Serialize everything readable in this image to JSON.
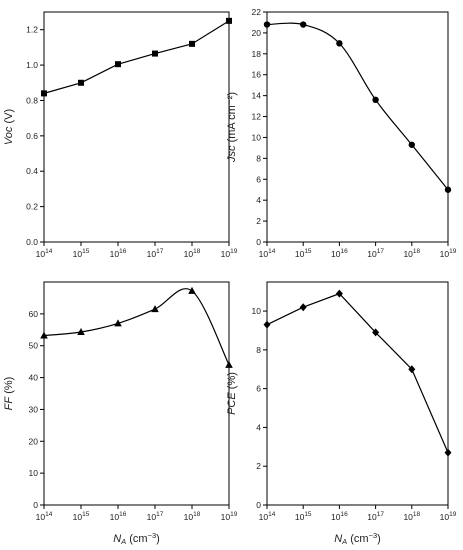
{
  "chart_data": [
    {
      "type": "line",
      "id": "voc",
      "ylabel_main": "Voc",
      "ylabel_unit": " (V)",
      "x_exponents": [
        14,
        15,
        16,
        17,
        18,
        19
      ],
      "x_base": "10",
      "y_ticks": [
        "0.0",
        "0.2",
        "0.4",
        "0.6",
        "0.8",
        "1.0",
        "1.2"
      ],
      "ylim": [
        0,
        1.3
      ],
      "marker": "square",
      "series": [
        {
          "x": [
            100000000000000.0,
            1000000000000000.0,
            1e+16,
            1e+17,
            1e+18,
            1e+19
          ],
          "y": [
            0.84,
            0.9,
            1.005,
            1.065,
            1.12,
            1.25
          ]
        }
      ],
      "interpolation": "linear"
    },
    {
      "type": "line",
      "id": "jsc",
      "ylabel_main": "Jsc",
      "ylabel_unit": " (mA cm⁻²)",
      "x_exponents": [
        14,
        15,
        16,
        17,
        18,
        19
      ],
      "x_base": "10",
      "y_ticks": [
        "0",
        "2",
        "4",
        "6",
        "8",
        "10",
        "12",
        "14",
        "16",
        "18",
        "20",
        "22"
      ],
      "ylim": [
        0,
        22
      ],
      "marker": "circle",
      "series": [
        {
          "x": [
            100000000000000.0,
            1000000000000000.0,
            1e+16,
            1e+17,
            1e+18,
            1e+19
          ],
          "y": [
            20.8,
            20.8,
            19.0,
            13.6,
            9.3,
            5.0
          ]
        }
      ],
      "interpolation": "smooth"
    },
    {
      "type": "line",
      "id": "ff",
      "ylabel_main": "FF",
      "ylabel_unit": " (%)",
      "x_exponents": [
        14,
        15,
        16,
        17,
        18,
        19
      ],
      "x_base": "10",
      "y_ticks": [
        "0",
        "10",
        "20",
        "30",
        "40",
        "50",
        "60"
      ],
      "ylim": [
        0,
        70
      ],
      "marker": "triangle",
      "series": [
        {
          "x": [
            100000000000000.0,
            1000000000000000.0,
            1e+16,
            1e+17,
            1e+18,
            1e+19
          ],
          "y": [
            53.2,
            54.3,
            57.0,
            61.5,
            67.2,
            44.0
          ]
        }
      ],
      "interpolation": "smooth"
    },
    {
      "type": "line",
      "id": "pce",
      "ylabel_main": "PCE",
      "ylabel_unit": " (%)",
      "x_exponents": [
        14,
        15,
        16,
        17,
        18,
        19
      ],
      "x_base": "10",
      "y_ticks": [
        "0",
        "2",
        "4",
        "6",
        "8",
        "10"
      ],
      "ylim": [
        0,
        11.5
      ],
      "marker": "diamond",
      "series": [
        {
          "x": [
            100000000000000.0,
            1000000000000000.0,
            1e+16,
            1e+17,
            1e+18,
            1e+19
          ],
          "y": [
            9.3,
            10.2,
            10.9,
            8.9,
            7.0,
            2.7
          ]
        }
      ],
      "interpolation": "linear"
    }
  ],
  "x_axis_label": {
    "main": "N",
    "sub": "A",
    "unit": " (cm",
    "exp": "−3",
    "close": ")"
  }
}
